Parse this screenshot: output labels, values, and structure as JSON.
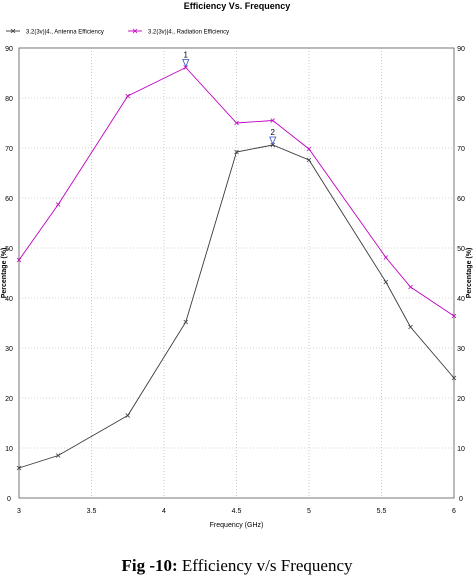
{
  "chart_data": {
    "type": "line",
    "title": "Efficiency Vs. Frequency",
    "xlabel": "Frequency (GHz)",
    "ylabel": "Percentage (%)",
    "ylabel_right": "Percentage (%)",
    "xlim": [
      3,
      6
    ],
    "ylim": [
      0,
      90
    ],
    "xticks": [
      "3",
      "3.5",
      "4",
      "4.5",
      "5",
      "5.5",
      "6"
    ],
    "yticks": [
      "0",
      "10",
      "20",
      "30",
      "40",
      "50",
      "60",
      "70",
      "80",
      "90"
    ],
    "grid": true,
    "legend_position": "top-left",
    "series": [
      {
        "name": "3.2(3v)|4., Antenna Efficiency",
        "color": "#3a3a3a",
        "marker_name": "Antenna Efficiency",
        "x": [
          3.0,
          3.27,
          3.75,
          4.15,
          4.5,
          4.75,
          5.0,
          5.53,
          5.7,
          6.0
        ],
        "y": [
          6,
          8.5,
          16.5,
          35.2,
          69.2,
          70.6,
          67.6,
          43.2,
          34.2,
          24
        ]
      },
      {
        "name": "3.2(3v)|4., Radiation Efficiency",
        "color": "#c000c0",
        "marker_name": "Radiation Efficiency",
        "x": [
          3.0,
          3.27,
          3.75,
          4.15,
          4.5,
          4.75,
          5.0,
          5.53,
          5.7,
          6.0
        ],
        "y": [
          47.6,
          58.7,
          80.4,
          86.1,
          75,
          75.5,
          69.8,
          48.1,
          42.2,
          36.4
        ]
      }
    ],
    "markers": [
      {
        "label": "1",
        "x": 4.15,
        "y": 86.1
      },
      {
        "label": "2",
        "x": 4.75,
        "y": 70.6
      }
    ]
  },
  "caption": {
    "prefix": "Fig -10:",
    "text": " Efficiency v/s Frequency"
  }
}
